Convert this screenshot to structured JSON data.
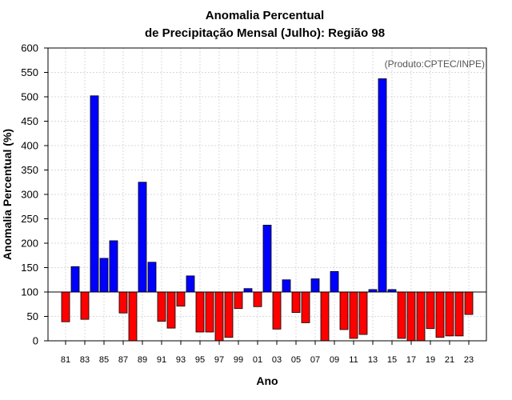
{
  "chart_data": {
    "type": "bar",
    "title": "Anomalia Percentual",
    "subtitle": "de Precipitação Mensal (Julho): Região 98",
    "xlabel": "Ano",
    "ylabel": "Anomalia Percentual (%)",
    "credit": "(Produto:CPTEC/INPE)",
    "ylim": [
      0,
      600
    ],
    "yticks": [
      "0",
      "50",
      "100",
      "150",
      "200",
      "250",
      "300",
      "350",
      "400",
      "450",
      "500",
      "550",
      "600"
    ],
    "baseline": 100,
    "grid": true,
    "categories": [
      "81",
      "82",
      "83",
      "84",
      "85",
      "86",
      "87",
      "88",
      "89",
      "90",
      "91",
      "92",
      "93",
      "94",
      "95",
      "96",
      "97",
      "98",
      "99",
      "00",
      "01",
      "02",
      "03",
      "04",
      "05",
      "06",
      "07",
      "08",
      "09",
      "10",
      "11",
      "12",
      "13",
      "14",
      "15",
      "16",
      "17",
      "18",
      "19",
      "20",
      "21",
      "22",
      "23"
    ],
    "xtick_labels": [
      "81",
      "83",
      "85",
      "87",
      "89",
      "91",
      "93",
      "95",
      "97",
      "99",
      "01",
      "03",
      "05",
      "07",
      "09",
      "11",
      "13",
      "15",
      "17",
      "19",
      "21",
      "23"
    ],
    "values": [
      39,
      152,
      44,
      502,
      169,
      205,
      57,
      0,
      325,
      161,
      40,
      26,
      71,
      133,
      18,
      18,
      0,
      7,
      66,
      107,
      70,
      237,
      24,
      125,
      58,
      37,
      127,
      0,
      142,
      23,
      5,
      13,
      105,
      537,
      105,
      5,
      0,
      0,
      25,
      7,
      10,
      10,
      54
    ],
    "colors": {
      "above": "#0000ff",
      "below": "#ff0000",
      "grid": "#d9d9d9",
      "axis": "#000000"
    }
  }
}
